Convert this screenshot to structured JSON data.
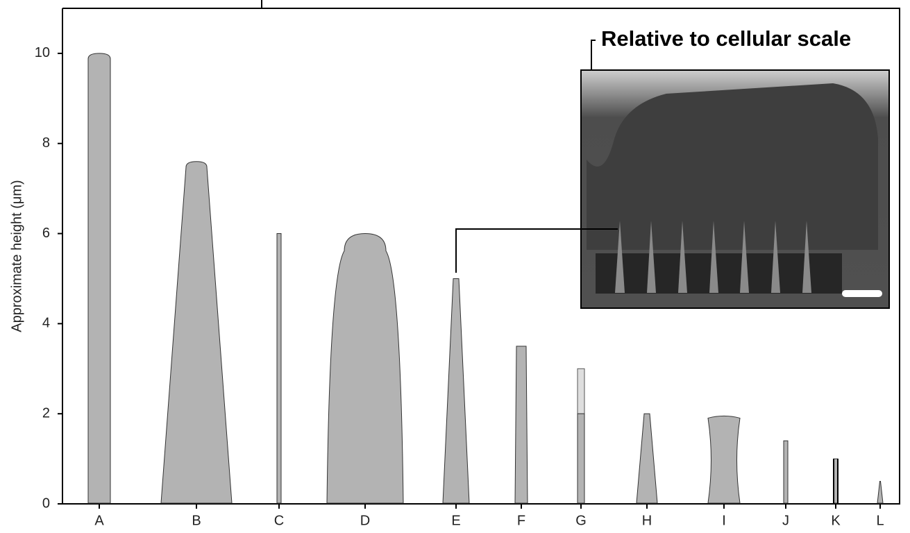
{
  "chart_data": {
    "type": "bar",
    "y_label": "Approximate height (μm)",
    "inset_title": "Relative to cellular scale",
    "categories": [
      "A",
      "B",
      "C",
      "D",
      "E",
      "F",
      "G",
      "H",
      "I",
      "J",
      "K",
      "L"
    ],
    "values": [
      10,
      7.6,
      6,
      6,
      5,
      3.5,
      2,
      2,
      1.95,
      1.4,
      1,
      0.5
    ],
    "upper_segment": [
      null,
      null,
      null,
      null,
      null,
      null,
      1,
      null,
      null,
      null,
      null,
      null
    ],
    "color": "#b3b3b3",
    "upper_color": "#dedede",
    "ylim": [
      0,
      11
    ],
    "yticks": [
      0,
      2,
      4,
      6,
      8,
      10
    ],
    "grid": false
  }
}
